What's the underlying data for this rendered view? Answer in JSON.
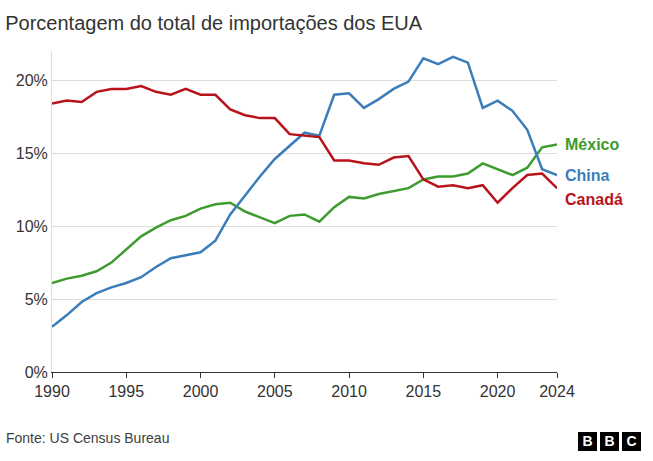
{
  "chart_data": {
    "type": "line",
    "title": "Porcentagem do total de importações dos EUA",
    "source": "Fonte: US Census Bureau",
    "logo": "BBC",
    "x": [
      1990,
      1991,
      1992,
      1993,
      1994,
      1995,
      1996,
      1997,
      1998,
      1999,
      2000,
      2001,
      2002,
      2003,
      2004,
      2005,
      2006,
      2007,
      2008,
      2009,
      2010,
      2011,
      2012,
      2013,
      2014,
      2015,
      2016,
      2017,
      2018,
      2019,
      2020,
      2021,
      2022,
      2023,
      2024
    ],
    "series": [
      {
        "name": "México",
        "color": "#3d9c2d",
        "values": [
          6.1,
          6.4,
          6.6,
          6.9,
          7.5,
          8.4,
          9.3,
          9.9,
          10.4,
          10.7,
          11.2,
          11.5,
          11.6,
          11.0,
          10.6,
          10.2,
          10.7,
          10.8,
          10.3,
          11.3,
          12.0,
          11.9,
          12.2,
          12.4,
          12.6,
          13.2,
          13.4,
          13.4,
          13.6,
          14.3,
          13.9,
          13.5,
          14.0,
          15.4,
          15.6
        ]
      },
      {
        "name": "China",
        "color": "#3b7dba",
        "values": [
          3.1,
          3.9,
          4.8,
          5.4,
          5.8,
          6.1,
          6.5,
          7.2,
          7.8,
          8.0,
          8.2,
          9.0,
          10.8,
          12.1,
          13.4,
          14.6,
          15.5,
          16.4,
          16.2,
          19.0,
          19.1,
          18.1,
          18.7,
          19.4,
          19.9,
          21.5,
          21.1,
          21.6,
          21.2,
          18.1,
          18.6,
          17.9,
          16.6,
          13.9,
          13.5
        ]
      },
      {
        "name": "Canadá",
        "color": "#b8131a",
        "values": [
          18.4,
          18.6,
          18.5,
          19.2,
          19.4,
          19.4,
          19.6,
          19.2,
          19.0,
          19.4,
          19.0,
          19.0,
          18.0,
          17.6,
          17.4,
          17.4,
          16.3,
          16.2,
          16.1,
          14.5,
          14.5,
          14.3,
          14.2,
          14.7,
          14.8,
          13.2,
          12.7,
          12.8,
          12.6,
          12.8,
          11.6,
          12.6,
          13.5,
          13.6,
          12.6
        ]
      }
    ],
    "xlim": [
      1990,
      2024
    ],
    "xticks": [
      1990,
      1995,
      2000,
      2005,
      2010,
      2015,
      2020,
      2024
    ],
    "ylim": [
      0,
      22
    ],
    "yticks": [
      {
        "value": 0,
        "label": "0%"
      },
      {
        "value": 5,
        "label": "5%"
      },
      {
        "value": 10,
        "label": "10%"
      },
      {
        "value": 15,
        "label": "15%"
      },
      {
        "value": 20,
        "label": "20%"
      }
    ],
    "grid": true
  }
}
